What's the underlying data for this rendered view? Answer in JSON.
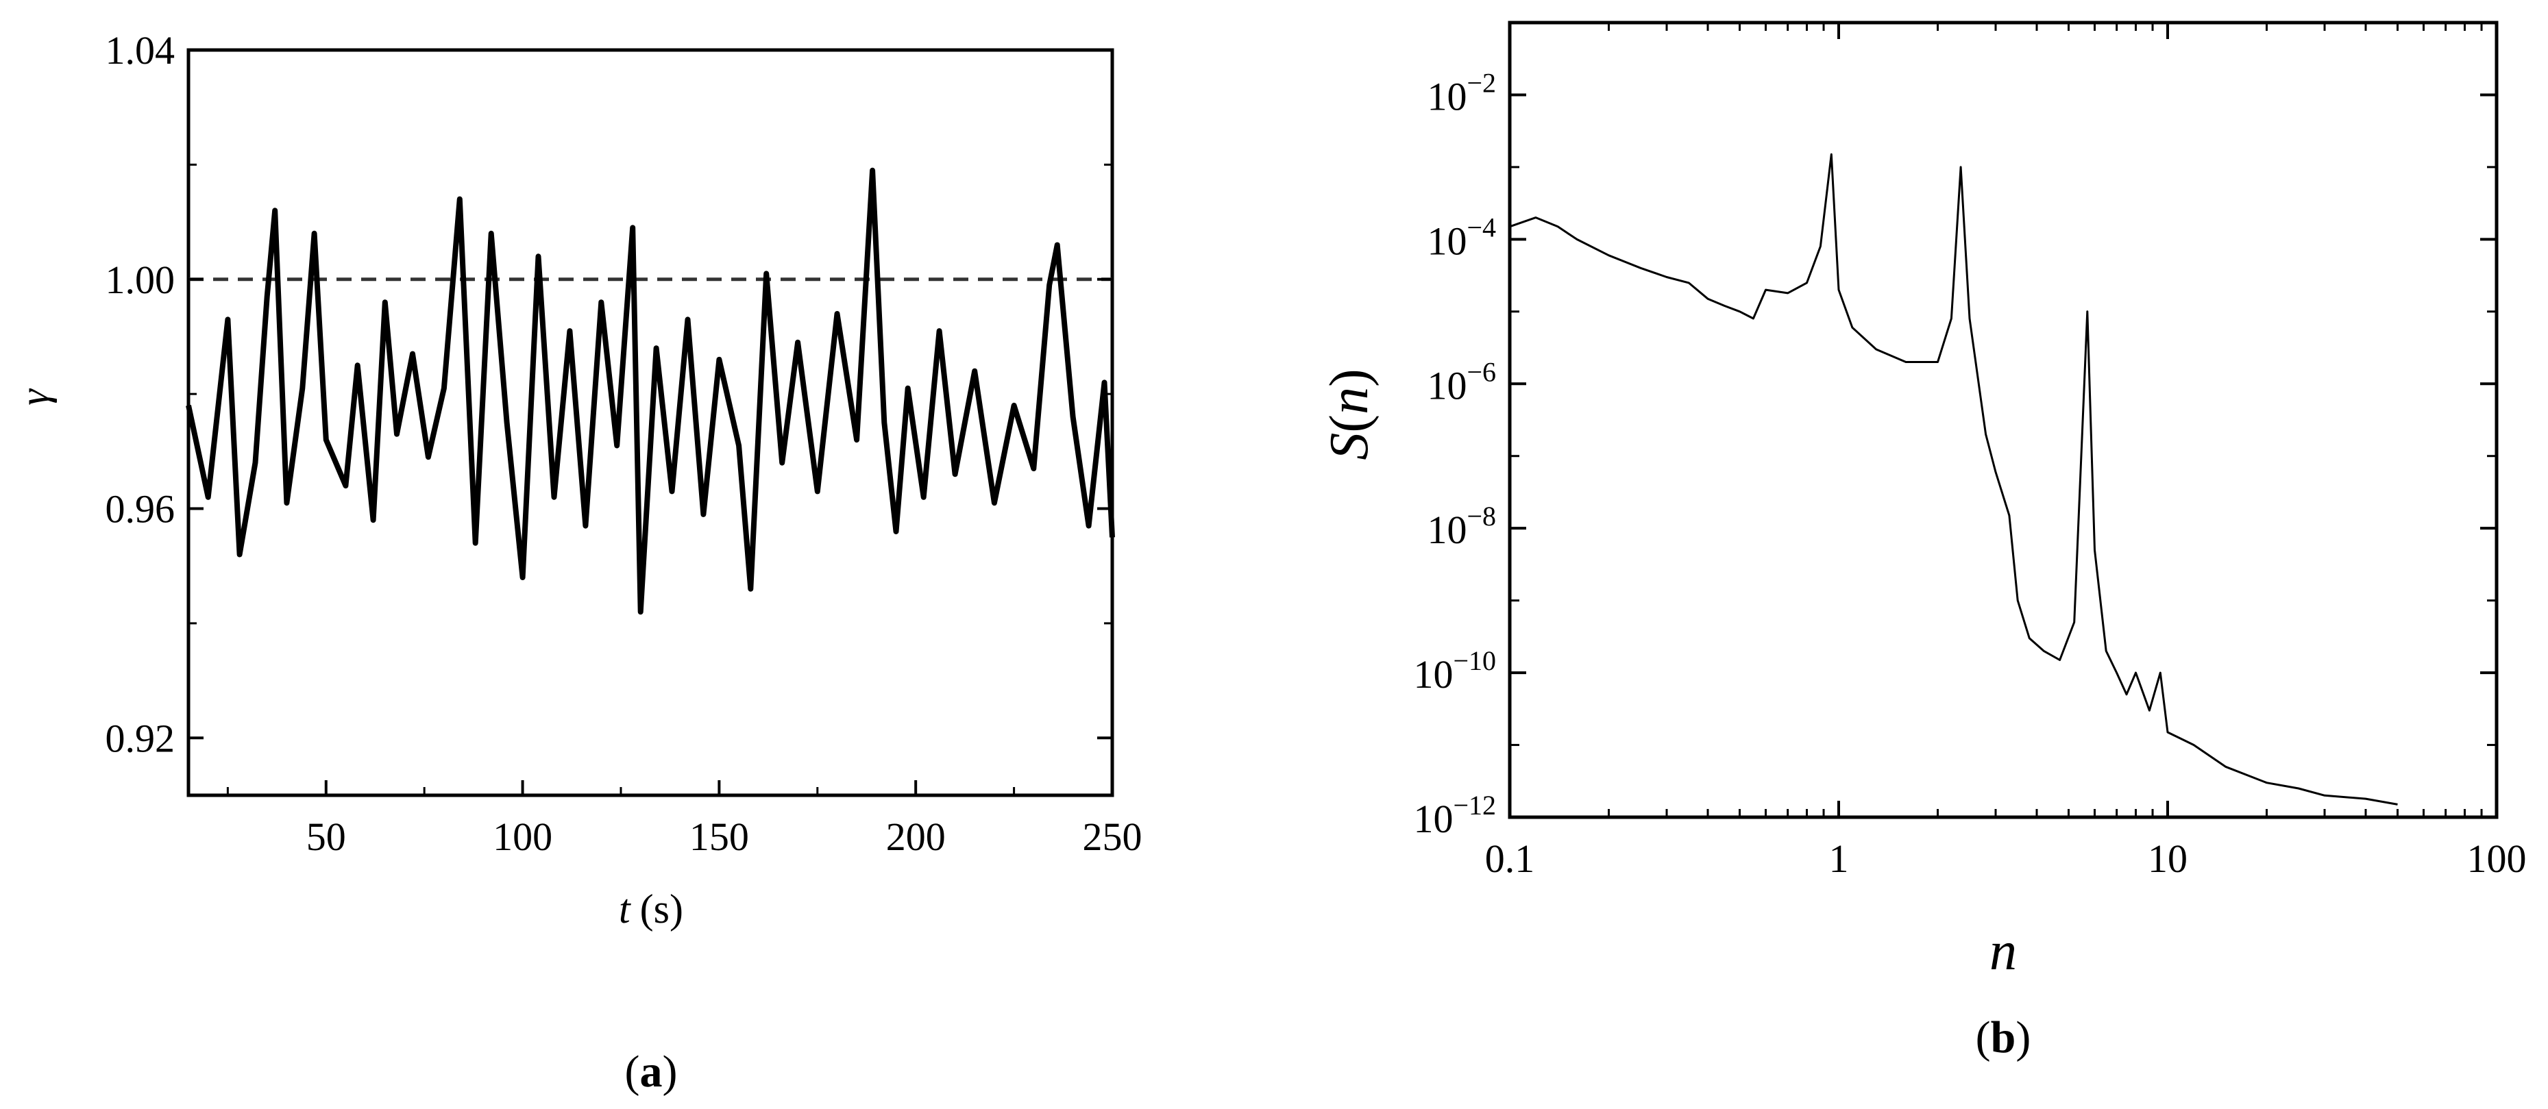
{
  "chart_data": [
    {
      "type": "line",
      "panel_label": "a",
      "xlabel_var": "t",
      "xlabel_unit": "(s)",
      "ylabel": "γ",
      "xlim": [
        15,
        250
      ],
      "ylim": [
        0.91,
        1.04
      ],
      "xticks": [
        50,
        100,
        150,
        200,
        250
      ],
      "yticks": [
        0.92,
        0.96,
        1.0,
        1.04
      ],
      "ytick_labels": [
        "0.92",
        "0.96",
        "1.00",
        "1.04"
      ],
      "reference_line": {
        "y": 1.0,
        "style": "dashed"
      },
      "series": [
        {
          "x": [
            15,
            20,
            25,
            28,
            32,
            35,
            37,
            40,
            44,
            47,
            50,
            55,
            58,
            62,
            65,
            68,
            72,
            76,
            80,
            84,
            88,
            92,
            96,
            100,
            104,
            108,
            112,
            116,
            120,
            124,
            128,
            130,
            134,
            138,
            142,
            146,
            150,
            155,
            158,
            162,
            166,
            170,
            175,
            180,
            185,
            189,
            192,
            195,
            198,
            202,
            206,
            210,
            215,
            220,
            225,
            230,
            234,
            236,
            240,
            244,
            248,
            250
          ],
          "y": [
            0.978,
            0.962,
            0.993,
            0.952,
            0.968,
            0.997,
            1.012,
            0.961,
            0.981,
            1.008,
            0.972,
            0.964,
            0.985,
            0.958,
            0.996,
            0.973,
            0.987,
            0.969,
            0.981,
            1.014,
            0.954,
            1.008,
            0.975,
            0.948,
            1.004,
            0.962,
            0.991,
            0.957,
            0.996,
            0.971,
            1.009,
            0.942,
            0.988,
            0.963,
            0.993,
            0.959,
            0.986,
            0.971,
            0.946,
            1.001,
            0.968,
            0.989,
            0.963,
            0.994,
            0.972,
            1.019,
            0.975,
            0.956,
            0.981,
            0.962,
            0.991,
            0.966,
            0.984,
            0.961,
            0.978,
            0.967,
            0.999,
            1.006,
            0.976,
            0.957,
            0.982,
            0.955
          ]
        }
      ]
    },
    {
      "type": "line",
      "panel_label": "b",
      "xlabel": "n",
      "ylabel_main": "S",
      "ylabel_var": "n",
      "xscale": "log",
      "yscale": "log",
      "xlim": [
        0.1,
        100
      ],
      "ylim": [
        1e-12,
        0.1
      ],
      "xticks": [
        0.1,
        1,
        10,
        100
      ],
      "xtick_labels": [
        "0.1",
        "1",
        "10",
        "100"
      ],
      "yticks": [
        1e-12,
        1e-10,
        1e-08,
        1e-06,
        0.0001,
        0.01
      ],
      "ytick_exponents": [
        "−12",
        "−10",
        "−8",
        "−6",
        "−4",
        "−2"
      ],
      "ytick_base": "10",
      "series": [
        {
          "x": [
            0.1,
            0.12,
            0.14,
            0.16,
            0.2,
            0.25,
            0.3,
            0.35,
            0.4,
            0.45,
            0.5,
            0.55,
            0.6,
            0.7,
            0.8,
            0.88,
            0.95,
            1.0,
            1.1,
            1.3,
            1.6,
            2.0,
            2.2,
            2.35,
            2.5,
            2.8,
            3.0,
            3.3,
            3.5,
            3.8,
            4.2,
            4.7,
            5.2,
            5.7,
            6.0,
            6.5,
            7.0,
            7.5,
            8.0,
            8.8,
            9.5,
            10,
            12,
            15,
            20,
            25,
            30,
            40,
            50
          ],
          "y": [
            0.00015,
            0.0002,
            0.00015,
            0.0001,
            6e-05,
            4e-05,
            3e-05,
            2.5e-05,
            1.5e-05,
            1.2e-05,
            1e-05,
            8e-06,
            2e-05,
            1.8e-05,
            2.5e-05,
            8e-05,
            0.0015,
            2e-05,
            6e-06,
            3e-06,
            2e-06,
            2e-06,
            8e-06,
            0.001,
            8e-06,
            2e-07,
            6e-08,
            1.5e-08,
            1e-09,
            3e-10,
            2e-10,
            1.5e-10,
            5e-10,
            1e-05,
            5e-09,
            2e-10,
            1e-10,
            5e-11,
            1e-10,
            3e-11,
            1e-10,
            1.5e-11,
            1e-11,
            5e-12,
            3e-12,
            2.5e-12,
            2e-12,
            1.8e-12,
            1.5e-12
          ]
        }
      ]
    }
  ]
}
